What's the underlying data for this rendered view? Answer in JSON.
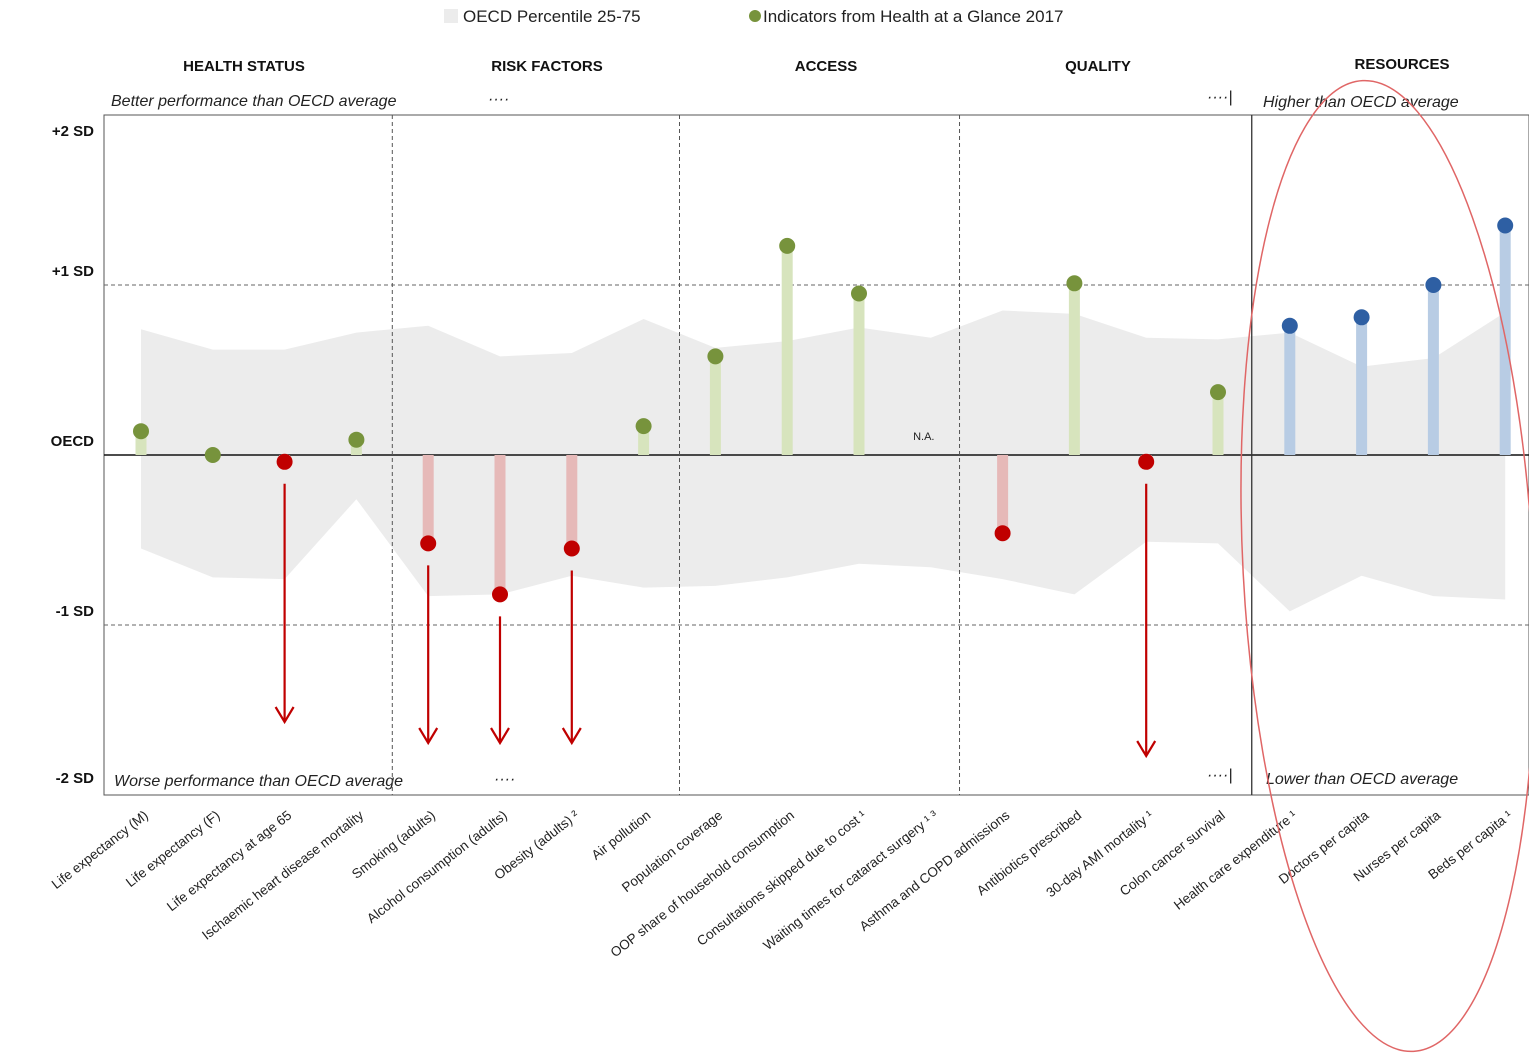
{
  "chart_data": {
    "type": "scatter",
    "legend": [
      {
        "label": "OECD Percentile 25-75",
        "color": "#ececec"
      },
      {
        "label": "Indicators from Health at a Glance 2017",
        "color": "#77933c"
      }
    ],
    "categories": [
      {
        "name": "HEALTH STATUS"
      },
      {
        "name": "RISK FACTORS"
      },
      {
        "name": "ACCESS"
      },
      {
        "name": "QUALITY"
      },
      {
        "name": "RESOURCES"
      }
    ],
    "notes": {
      "better": "Better performance than OECD average",
      "worse": "Worse performance than OECD average",
      "higher": "Higher than OECD average",
      "lower": "Lower than OECD average",
      "dots": "····",
      "dots_bar": "····|"
    },
    "y_ticks": [
      {
        "label": "+2 SD",
        "value": 2
      },
      {
        "label": "+1 SD",
        "value": 1
      },
      {
        "label": "OECD",
        "value": 0
      },
      {
        "label": "-1 SD",
        "value": -1
      },
      {
        "label": "-2 SD",
        "value": -2
      }
    ],
    "ylim": [
      -2,
      2
    ],
    "na_label": "N.A.",
    "colors": {
      "good_dot": "#77933c",
      "good_stem": "#d7e4bd",
      "bad_dot": "#c00000",
      "bad_stem": "#e6b9b8",
      "resource_dot": "#2e5fa3",
      "resource_stem": "#b8cce4",
      "band": "#ececec",
      "arrow": "#c00000",
      "highlight_ellipse": "#e06666"
    },
    "indicators": [
      {
        "label": "Life expectancy (M)",
        "value": 0.14,
        "status": "good",
        "band": [
          -0.55,
          0.74
        ]
      },
      {
        "label": "Life expectancy (F)",
        "value": 0.0,
        "status": "good",
        "band": [
          -0.72,
          0.62
        ]
      },
      {
        "label": "Life expectancy at age 65",
        "value": -0.04,
        "status": "bad",
        "band": [
          -0.73,
          0.62
        ]
      },
      {
        "label": "Ischaemic heart disease mortality",
        "value": 0.09,
        "status": "good",
        "band": [
          -0.26,
          0.72
        ]
      },
      {
        "label": "Smoking (adults)",
        "value": -0.52,
        "status": "bad",
        "band": [
          -0.83,
          0.76
        ]
      },
      {
        "label": "Alcohol consumption (adults)",
        "value": -0.82,
        "status": "bad",
        "band": [
          -0.82,
          0.58
        ]
      },
      {
        "label": "Obesity (adults) ²",
        "value": -0.55,
        "status": "bad",
        "band": [
          -0.71,
          0.6
        ]
      },
      {
        "label": "Air pollution",
        "value": 0.17,
        "status": "good",
        "band": [
          -0.78,
          0.8
        ]
      },
      {
        "label": "Population coverage",
        "value": 0.58,
        "status": "good",
        "band": [
          -0.77,
          0.63
        ]
      },
      {
        "label": "OOP share of household consumption",
        "value": 1.23,
        "status": "good",
        "band": [
          -0.72,
          0.67
        ]
      },
      {
        "label": "Consultations skipped due to cost ¹",
        "value": 0.95,
        "status": "good",
        "band": [
          -0.64,
          0.75
        ]
      },
      {
        "label": "Waiting times for cataract surgery ¹ ³",
        "value": null,
        "status": "na",
        "band": [
          -0.66,
          0.69
        ]
      },
      {
        "label": "Asthma and COPD admissions",
        "value": -0.46,
        "status": "bad",
        "band": [
          -0.73,
          0.85
        ]
      },
      {
        "label": "Antibiotics prescribed",
        "value": 1.01,
        "status": "good",
        "band": [
          -0.82,
          0.83
        ]
      },
      {
        "label": "30-day AMI mortality ¹",
        "value": -0.04,
        "status": "bad",
        "band": [
          -0.51,
          0.69
        ]
      },
      {
        "label": "Colon cancer survival",
        "value": 0.37,
        "status": "good",
        "band": [
          -0.52,
          0.68
        ]
      },
      {
        "label": "Health care expenditure ¹",
        "value": 0.76,
        "status": "resource",
        "band": [
          -0.92,
          0.72
        ]
      },
      {
        "label": "Doctors per capita",
        "value": 0.81,
        "status": "resource",
        "band": [
          -0.71,
          0.52
        ]
      },
      {
        "label": "Nurses per capita",
        "value": 1.0,
        "status": "resource",
        "band": [
          -0.83,
          0.57
        ]
      },
      {
        "label": "Beds per capita ¹",
        "value": 1.35,
        "status": "resource",
        "band": [
          -0.85,
          0.84
        ]
      }
    ],
    "worse_arrows": [
      2,
      4,
      5,
      6,
      14
    ],
    "highlighted_group": "RESOURCES"
  }
}
